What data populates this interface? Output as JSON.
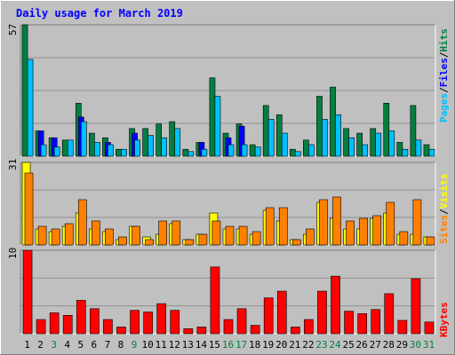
{
  "chart_data": [
    {
      "type": "bar",
      "title": "Daily usage for March 2019",
      "categories": [
        "1",
        "2",
        "3",
        "4",
        "5",
        "6",
        "7",
        "8",
        "9",
        "10",
        "11",
        "12",
        "13",
        "14",
        "15",
        "16",
        "17",
        "18",
        "19",
        "20",
        "21",
        "22",
        "23",
        "24",
        "25",
        "26",
        "27",
        "28",
        "29",
        "30",
        "31"
      ],
      "weekend_categories": [
        "3",
        "9",
        "16",
        "17",
        "23",
        "24",
        "30",
        "31"
      ],
      "ylabel_parts": [
        "Pages",
        "/",
        "Files",
        "/",
        "Hits"
      ],
      "ymax_label": "57",
      "ylim": [
        0,
        57
      ],
      "series": [
        {
          "name": "Hits",
          "color": "#008040",
          "values": [
            57,
            11,
            8,
            7,
            23,
            10,
            8,
            3,
            12,
            12,
            14,
            15,
            3,
            6,
            34,
            10,
            14,
            5,
            22,
            18,
            3,
            7,
            26,
            30,
            12,
            10,
            12,
            23,
            6,
            22,
            5
          ]
        },
        {
          "name": "Files",
          "color": "#0000ff",
          "values": [
            0,
            11,
            8,
            0,
            17,
            0,
            6,
            0,
            10,
            0,
            0,
            0,
            0,
            6,
            0,
            8,
            13,
            0,
            0,
            0,
            0,
            0,
            0,
            0,
            0,
            0,
            0,
            0,
            0,
            0,
            0
          ]
        },
        {
          "name": "Pages",
          "color": "#00c0ff",
          "values": [
            42,
            5,
            4,
            7,
            15,
            6,
            5,
            3,
            7,
            9,
            8,
            12,
            2,
            3,
            26,
            5,
            5,
            4,
            16,
            10,
            2,
            5,
            16,
            18,
            8,
            5,
            10,
            11,
            3,
            7,
            3
          ]
        }
      ]
    },
    {
      "type": "bar",
      "categories": [
        "1",
        "2",
        "3",
        "4",
        "5",
        "6",
        "7",
        "8",
        "9",
        "10",
        "11",
        "12",
        "13",
        "14",
        "15",
        "16",
        "17",
        "18",
        "19",
        "20",
        "21",
        "22",
        "23",
        "24",
        "25",
        "26",
        "27",
        "28",
        "29",
        "30",
        "31"
      ],
      "ylabel_parts": [
        "Sites",
        "/",
        "Visits"
      ],
      "ymax_label": "31",
      "ylim": [
        0,
        31
      ],
      "series": [
        {
          "name": "Visits",
          "color": "#ffff00",
          "values": [
            31,
            6,
            5,
            7,
            12,
            6,
            5,
            2,
            7,
            3,
            4,
            8,
            2,
            4,
            12,
            6,
            6,
            4,
            13,
            9,
            2,
            4,
            16,
            10,
            6,
            6,
            10,
            12,
            4,
            4,
            3
          ]
        },
        {
          "name": "Sites",
          "color": "#ff8000",
          "values": [
            27,
            7,
            6,
            8,
            17,
            9,
            6,
            3,
            7,
            2,
            9,
            9,
            2,
            4,
            9,
            7,
            7,
            5,
            14,
            14,
            2,
            6,
            17,
            18,
            9,
            10,
            11,
            16,
            5,
            17,
            3
          ]
        }
      ]
    },
    {
      "type": "bar",
      "categories": [
        "1",
        "2",
        "3",
        "4",
        "5",
        "6",
        "7",
        "8",
        "9",
        "10",
        "11",
        "12",
        "13",
        "14",
        "15",
        "16",
        "17",
        "18",
        "19",
        "20",
        "21",
        "22",
        "23",
        "24",
        "25",
        "26",
        "27",
        "28",
        "29",
        "30",
        "31"
      ],
      "ylabel_parts": [
        "KBytes"
      ],
      "ymax_label": "10",
      "ylim": [
        0,
        10
      ],
      "series": [
        {
          "name": "KBytes",
          "color": "#ff0000",
          "values": [
            10,
            1.7,
            2.5,
            2.2,
            4,
            3,
            1.7,
            0.8,
            2.8,
            2.6,
            3.6,
            2.8,
            0.6,
            0.8,
            8,
            1.7,
            3,
            1,
            4.3,
            5.1,
            0.8,
            1.7,
            5.1,
            6.9,
            2.7,
            2.4,
            2.9,
            4.8,
            1.6,
            6.6,
            1.4
          ]
        }
      ]
    }
  ],
  "colors": {
    "background": "#c0c0c0",
    "plot_background": "#c0c0c0",
    "title": "#0000ff",
    "weekday_label": "#000000",
    "weekend_label": "#008040",
    "axis_label": "#000000"
  }
}
